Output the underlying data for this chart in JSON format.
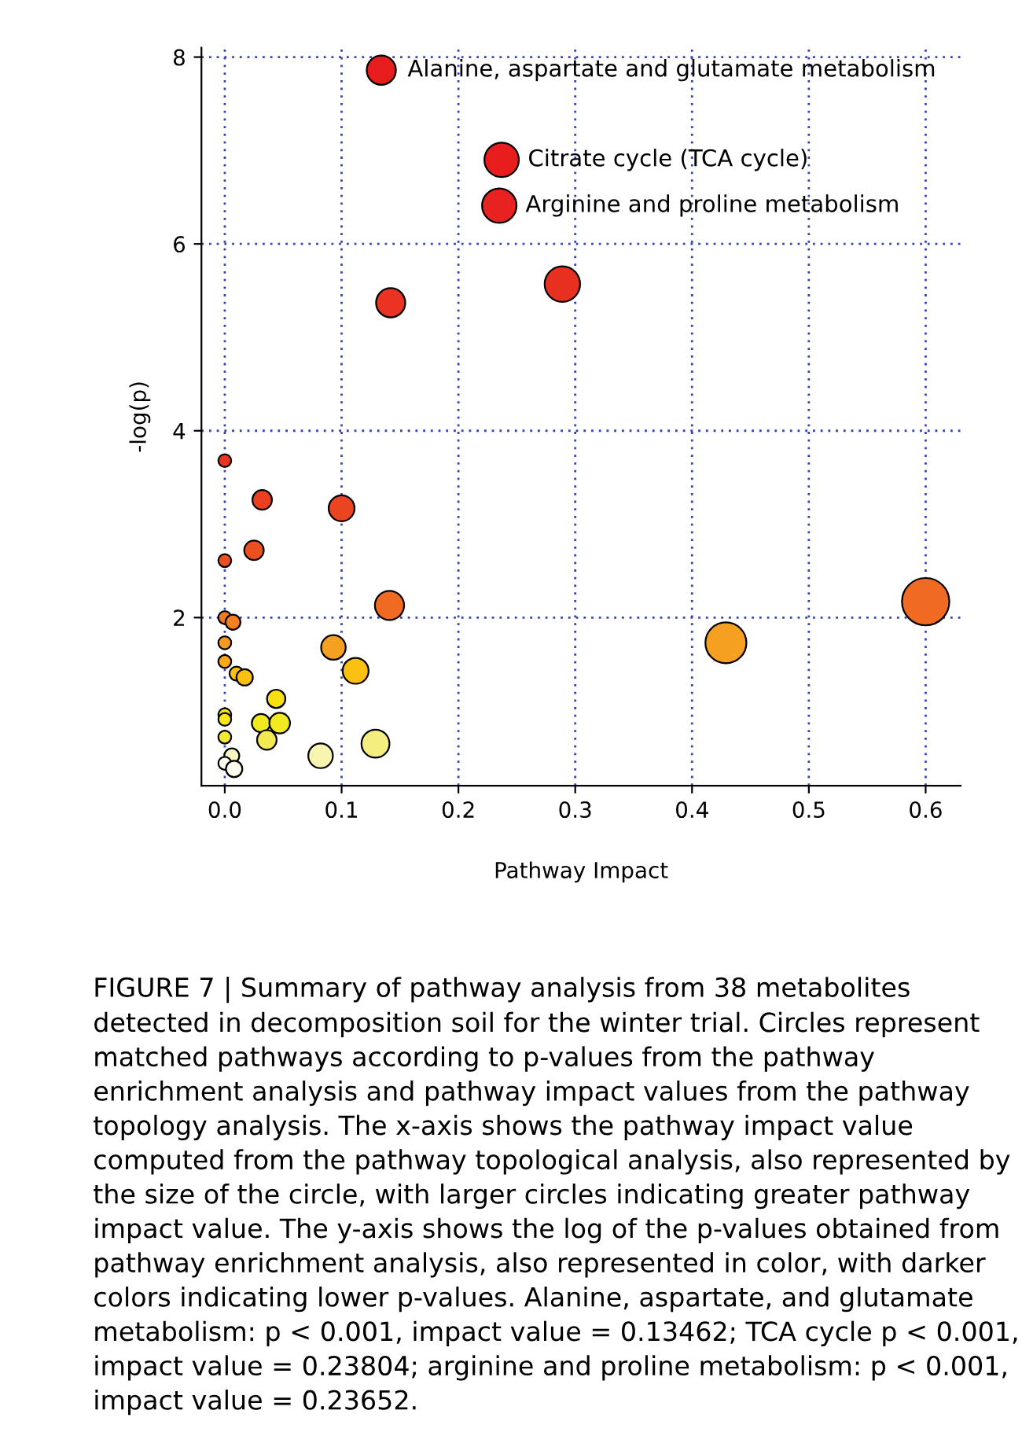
{
  "chart_data": {
    "type": "bubble",
    "xlabel": "Pathway Impact",
    "ylabel": "-log(p)",
    "x": [
      0.134,
      0.237,
      0.235,
      0.142,
      0.289,
      0,
      0.032,
      0.1,
      0.025,
      0,
      0.141,
      0.6,
      0,
      0.007,
      0,
      0.093,
      0.429,
      0,
      0.01,
      0.017,
      0.112,
      0.044,
      0,
      0,
      0.031,
      0.047,
      0,
      0.036,
      0.129,
      0.082,
      0.006,
      0,
      0.008
    ],
    "values": [
      7.86,
      6.9,
      6.41,
      5.37,
      5.57,
      3.68,
      3.26,
      3.17,
      2.72,
      2.61,
      2.13,
      2.17,
      2.0,
      1.95,
      1.73,
      1.68,
      1.73,
      1.53,
      1.4,
      1.36,
      1.43,
      1.13,
      0.96,
      0.91,
      0.87,
      0.87,
      0.72,
      0.69,
      0.65,
      0.52,
      0.52,
      0.44,
      0.38
    ],
    "sizes": [
      0.38,
      0.53,
      0.53,
      0.38,
      0.56,
      0.074,
      0.17,
      0.3,
      0.17,
      0.074,
      0.38,
      1,
      0.074,
      0.1,
      0.074,
      0.27,
      0.75,
      0.074,
      0.087,
      0.12,
      0.3,
      0.15,
      0.074,
      0.074,
      0.15,
      0.19,
      0.074,
      0.17,
      0.35,
      0.27,
      0.1,
      0.074,
      0.12
    ],
    "colors": [
      "#e81e1e",
      "#e81e1e",
      "#e82220",
      "#ea3322",
      "#e83020",
      "#e8351f",
      "#ea4020",
      "#ea4520",
      "#ec5020",
      "#ec5020",
      "#f06a22",
      "#f06a22",
      "#f07a20",
      "#f08020",
      "#f59a20",
      "#f5a020",
      "#f5a020",
      "#f8a818",
      "#fbc010",
      "#fbc010",
      "#fbc010",
      "#f8e010",
      "#f8e818",
      "#f8e818",
      "#f2ea20",
      "#f2ea20",
      "#f2ea30",
      "#f2ea50",
      "#f4ed80",
      "#f7f5b0",
      "#f7f5c0",
      "#fdfdf0",
      "#fdfdf0"
    ],
    "xlim": [
      -0.02,
      0.63
    ],
    "ylim": [
      0.2,
      8.1
    ],
    "xticks": [
      {
        "value": 0,
        "label": "0.0"
      },
      0.1,
      0.2,
      0.3,
      0.4,
      0.5,
      0.6
    ],
    "yticks": [
      2,
      4,
      6,
      8
    ],
    "grid": true,
    "marker": "circle",
    "annotations": [
      {
        "text": "Alanine, aspartate and glutamate metabolism",
        "x": 0.134,
        "y": 7.86
      },
      {
        "text": "Citrate cycle (TCA cycle)",
        "x": 0.237,
        "y": 6.9
      },
      {
        "text": "Arginine and proline metabolism",
        "x": 0.235,
        "y": 6.41
      },
      "FIGURE 7 | Summary of pathway analysis from 38 metabolites detected in decomposition soil for the winter trial. Circles represent matched pathways according to p-values from the pathway enrichment analysis and pathway impact values from the pathway topology analysis. The x-axis shows the pathway impact value computed from the pathway topological analysis, also represented by the size of the circle, with larger circles indicating greater pathway impact value. The y-axis shows the log of the p-values obtained from pathway enrichment analysis, also represented in color, with darker colors indicating lower p-values. Alanine, aspartate, and glutamate metabolism: p < 0.001, impact value = 0.13462; TCA cycle p < 0.001, impact value = 0.23804; arginine and proline metabolism: p < 0.001, impact value = 0.23652."
    ]
  }
}
